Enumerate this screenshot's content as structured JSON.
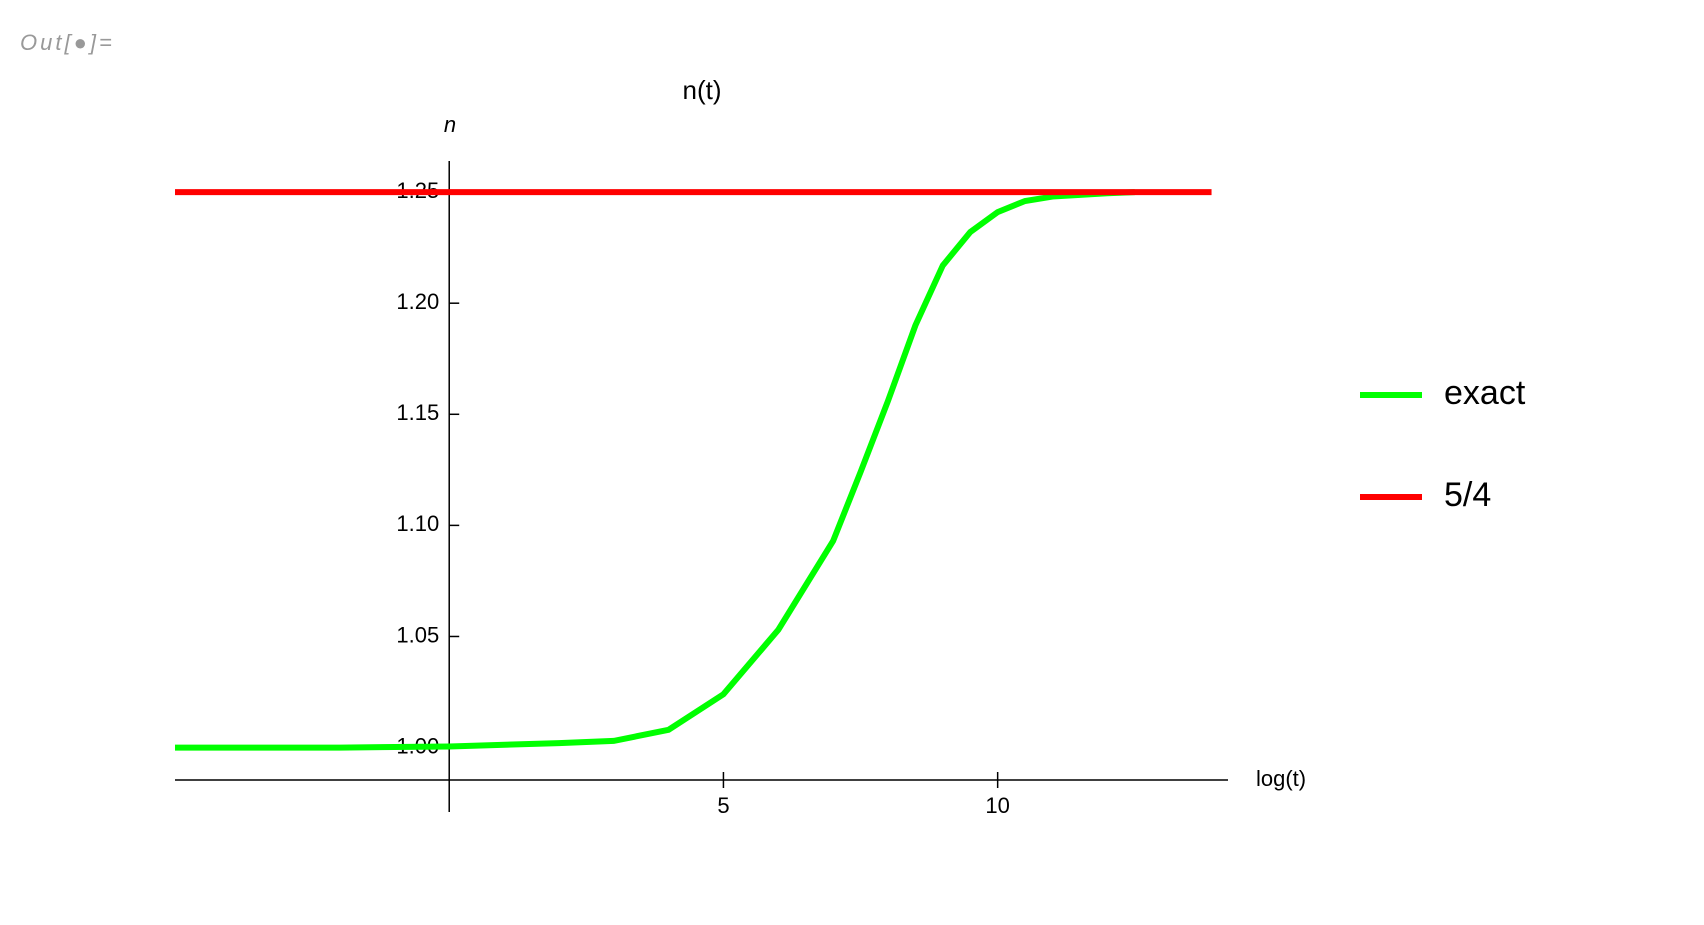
{
  "prompt": "Out[●]=",
  "chart_data": {
    "type": "line",
    "title": "n(t)",
    "x_label": "log(t)",
    "y_label": "n",
    "xlim": [
      -5,
      14.2
    ],
    "xticks": [
      5,
      10
    ],
    "ylim": [
      0.971,
      1.264
    ],
    "yticks": [
      {
        "value": 1.0,
        "label": "1.00"
      },
      1.05,
      {
        "value": 1.1,
        "label": "1.10"
      },
      1.15,
      {
        "value": 1.2,
        "label": "1.20"
      },
      1.25
    ],
    "legend": "right",
    "series": [
      {
        "name": "exact",
        "color": "#00ff00",
        "x": [
          -5,
          -2,
          0,
          2,
          3,
          4,
          5,
          6,
          7,
          7.5,
          8,
          8.5,
          9,
          9.5,
          10,
          10.5,
          11,
          12,
          12.5
        ],
        "values": [
          1.0,
          1.0,
          1.0005,
          1.002,
          1.003,
          1.008,
          1.024,
          1.053,
          1.093,
          1.124,
          1.156,
          1.19,
          1.217,
          1.232,
          1.241,
          1.246,
          1.248,
          1.2495,
          1.25
        ]
      },
      {
        "name": "5/4",
        "color": "#ff0000",
        "x": [
          -5,
          13.9
        ],
        "values": [
          1.25,
          1.25
        ]
      }
    ]
  }
}
